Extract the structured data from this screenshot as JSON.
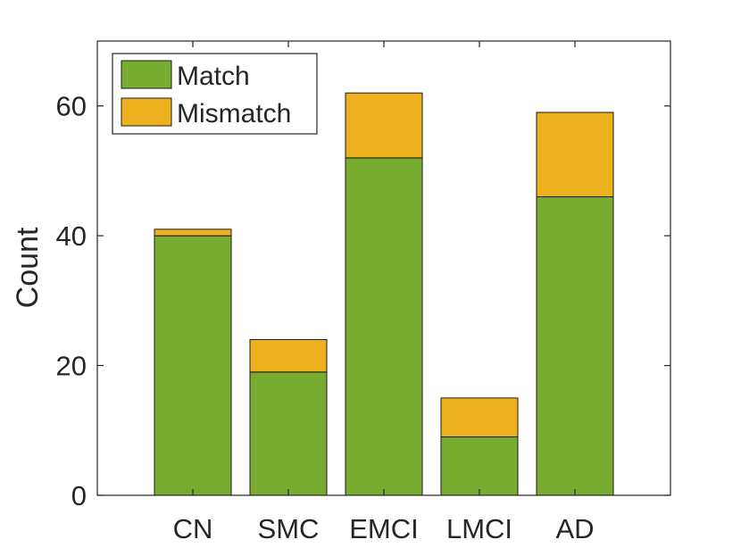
{
  "chart_data": {
    "type": "bar",
    "stacked": true,
    "categories": [
      "CN",
      "SMC",
      "EMCI",
      "LMCI",
      "AD"
    ],
    "series": [
      {
        "name": "Match",
        "values": [
          40,
          19,
          52,
          9,
          46
        ],
        "color": "#77AC30"
      },
      {
        "name": "Mismatch",
        "values": [
          1,
          5,
          10,
          6,
          13
        ],
        "color": "#EDB120"
      }
    ],
    "ylabel": "Count",
    "ylim": [
      0,
      70
    ],
    "yticks": [
      0,
      20,
      40,
      60
    ],
    "grid": false,
    "legend_position": "top-left"
  }
}
